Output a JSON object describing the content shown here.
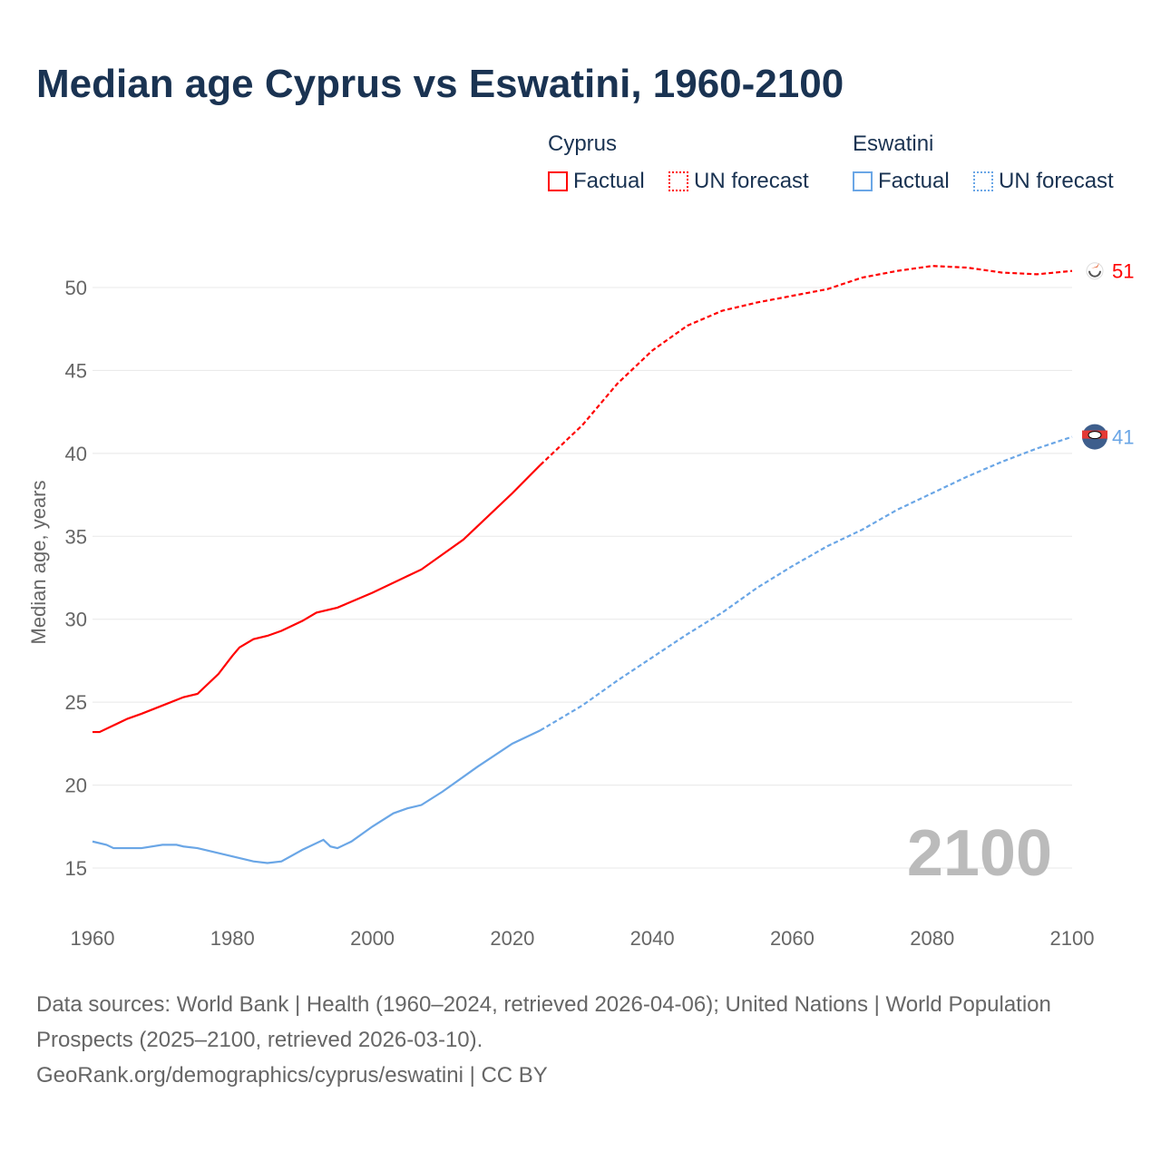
{
  "title": "Median age Cyprus vs Eswatini, 1960-2100",
  "legend": {
    "groups": [
      {
        "name": "Cyprus",
        "factual": "Factual",
        "forecast": "UN forecast"
      },
      {
        "name": "Eswatini",
        "factual": "Factual",
        "forecast": "UN forecast"
      }
    ]
  },
  "colors": {
    "cyprus": "#ff0000",
    "eswatini": "#6aa6e6"
  },
  "footer": {
    "line1": "Data sources: World Bank | Health (1960–2024, retrieved 2026-04-06); United Nations | World Population Prospects (2025–2100, retrieved 2026-03-10).",
    "line2": "GeoRank.org/demographics/cyprus/eswatini | CC BY"
  },
  "chart_data": {
    "type": "line",
    "xlabel": "",
    "ylabel": "Median age, years",
    "xlim": [
      1960,
      2100
    ],
    "ylim": [
      13,
      53
    ],
    "xticks": [
      1960,
      1980,
      2000,
      2020,
      2040,
      2060,
      2080,
      2100
    ],
    "yticks": [
      15,
      20,
      25,
      30,
      35,
      40,
      45,
      50
    ],
    "year_label": "2100",
    "grid": true,
    "series": [
      {
        "name": "Cyprus",
        "end_label": "51",
        "factual": [
          [
            1960,
            23.2
          ],
          [
            1961,
            23.2
          ],
          [
            1965,
            24.0
          ],
          [
            1967,
            24.3
          ],
          [
            1970,
            24.8
          ],
          [
            1973,
            25.3
          ],
          [
            1975,
            25.5
          ],
          [
            1978,
            26.7
          ],
          [
            1980,
            27.8
          ],
          [
            1981,
            28.3
          ],
          [
            1983,
            28.8
          ],
          [
            1985,
            29.0
          ],
          [
            1987,
            29.3
          ],
          [
            1990,
            29.9
          ],
          [
            1992,
            30.4
          ],
          [
            1995,
            30.7
          ],
          [
            2000,
            31.6
          ],
          [
            2005,
            32.6
          ],
          [
            2007,
            33.0
          ],
          [
            2010,
            33.9
          ],
          [
            2013,
            34.8
          ],
          [
            2015,
            35.6
          ],
          [
            2020,
            37.6
          ],
          [
            2024,
            39.3
          ]
        ],
        "forecast": [
          [
            2024,
            39.3
          ],
          [
            2030,
            41.7
          ],
          [
            2035,
            44.2
          ],
          [
            2040,
            46.2
          ],
          [
            2045,
            47.7
          ],
          [
            2050,
            48.6
          ],
          [
            2055,
            49.1
          ],
          [
            2060,
            49.5
          ],
          [
            2065,
            49.9
          ],
          [
            2070,
            50.6
          ],
          [
            2075,
            51.0
          ],
          [
            2080,
            51.3
          ],
          [
            2085,
            51.2
          ],
          [
            2090,
            50.9
          ],
          [
            2095,
            50.8
          ],
          [
            2100,
            51.0
          ]
        ]
      },
      {
        "name": "Eswatini",
        "end_label": "41",
        "factual": [
          [
            1960,
            16.6
          ],
          [
            1962,
            16.4
          ],
          [
            1963,
            16.2
          ],
          [
            1967,
            16.2
          ],
          [
            1970,
            16.4
          ],
          [
            1972,
            16.4
          ],
          [
            1973,
            16.3
          ],
          [
            1975,
            16.2
          ],
          [
            1980,
            15.7
          ],
          [
            1983,
            15.4
          ],
          [
            1985,
            15.3
          ],
          [
            1987,
            15.4
          ],
          [
            1990,
            16.1
          ],
          [
            1993,
            16.7
          ],
          [
            1994,
            16.3
          ],
          [
            1995,
            16.2
          ],
          [
            1997,
            16.6
          ],
          [
            2000,
            17.5
          ],
          [
            2003,
            18.3
          ],
          [
            2005,
            18.6
          ],
          [
            2007,
            18.8
          ],
          [
            2010,
            19.6
          ],
          [
            2013,
            20.5
          ],
          [
            2015,
            21.1
          ],
          [
            2020,
            22.5
          ],
          [
            2024,
            23.3
          ]
        ],
        "forecast": [
          [
            2024,
            23.3
          ],
          [
            2030,
            24.8
          ],
          [
            2035,
            26.3
          ],
          [
            2040,
            27.7
          ],
          [
            2045,
            29.1
          ],
          [
            2050,
            30.4
          ],
          [
            2055,
            31.9
          ],
          [
            2060,
            33.2
          ],
          [
            2065,
            34.4
          ],
          [
            2070,
            35.4
          ],
          [
            2075,
            36.6
          ],
          [
            2080,
            37.6
          ],
          [
            2085,
            38.6
          ],
          [
            2090,
            39.5
          ],
          [
            2095,
            40.3
          ],
          [
            2100,
            41.0
          ]
        ]
      }
    ]
  }
}
